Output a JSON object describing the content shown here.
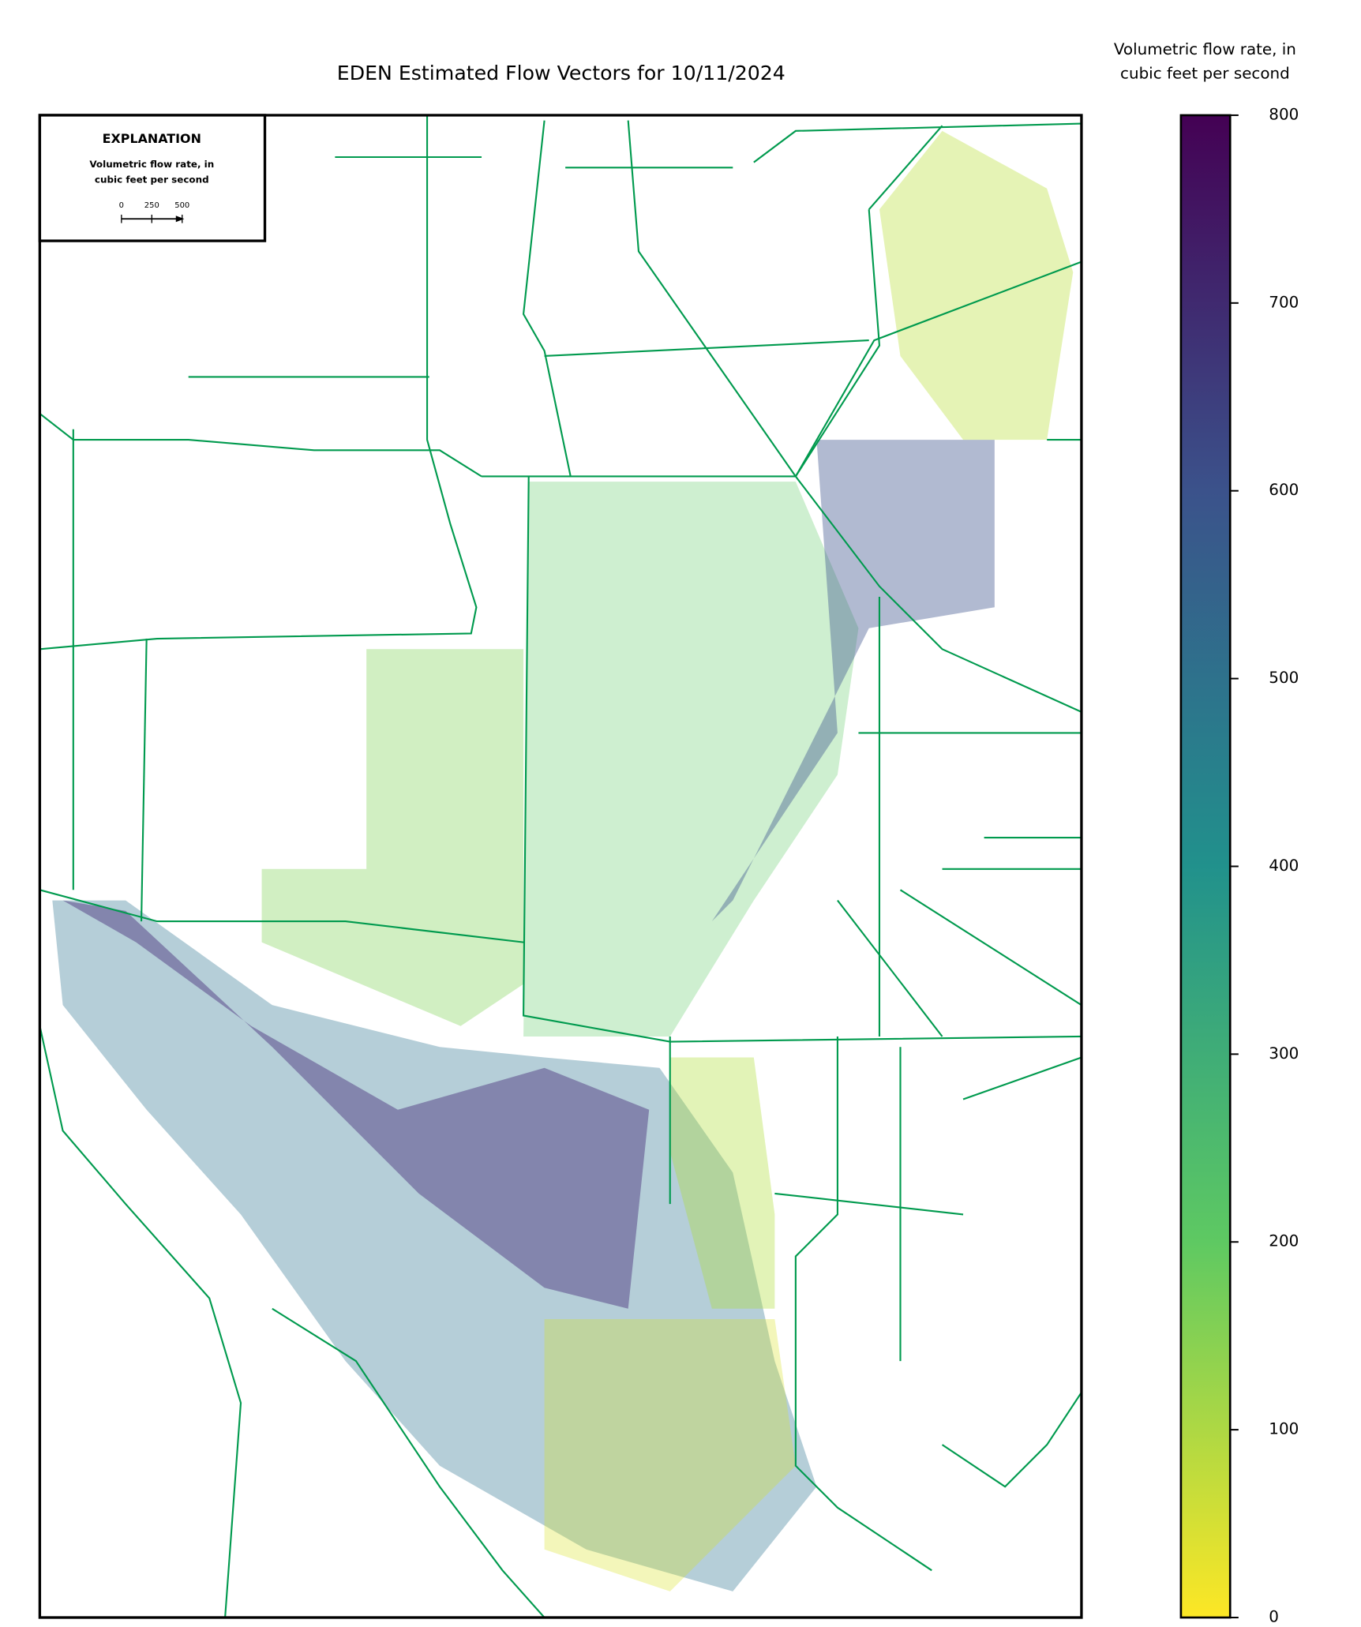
{
  "title": "EDEN Estimated Flow Vectors for 10/11/2024",
  "explanation": {
    "heading": "EXPLANATION",
    "label": [
      "Volumetric flow rate, in",
      "cubic feet per second"
    ],
    "scale_lim": [
      0,
      500
    ],
    "scale_ticks": [
      0,
      250,
      500
    ]
  },
  "colorbar": {
    "label": [
      "Volumetric flow rate, in",
      "cubic feet per second"
    ],
    "lim": [
      0,
      800
    ],
    "ticks": [
      0,
      100,
      200,
      300,
      400,
      500,
      600,
      700,
      800
    ],
    "colors": [
      "#fde725",
      "#5ec962",
      "#21918c",
      "#3b528b",
      "#440154"
    ]
  }
}
